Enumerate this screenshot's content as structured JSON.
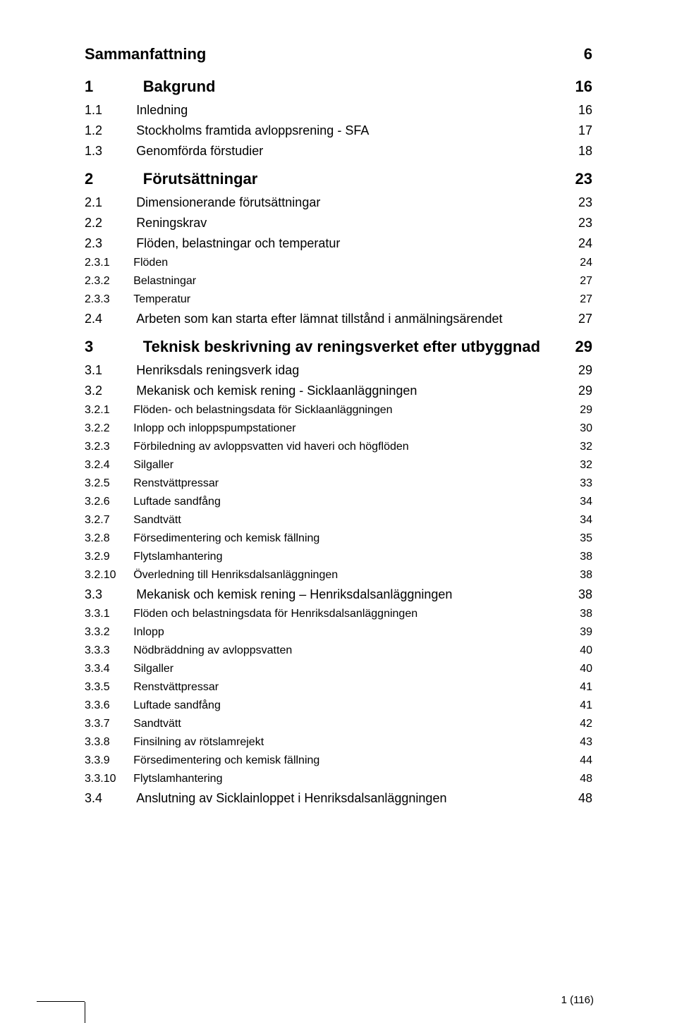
{
  "toc": [
    {
      "level": 0,
      "bold": true,
      "num": "",
      "title": "Sammanfattning",
      "page": "6"
    },
    {
      "level": 1,
      "bold": true,
      "num": "1",
      "title": "Bakgrund",
      "page": "16"
    },
    {
      "level": 1,
      "bold": false,
      "num": "1.1",
      "title": "Inledning",
      "page": "16"
    },
    {
      "level": 1,
      "bold": false,
      "num": "1.2",
      "title": "Stockholms framtida avloppsrening - SFA",
      "page": "17"
    },
    {
      "level": 1,
      "bold": false,
      "num": "1.3",
      "title": "Genomförda förstudier",
      "page": "18"
    },
    {
      "level": 1,
      "bold": true,
      "num": "2",
      "title": "Förutsättningar",
      "page": "23"
    },
    {
      "level": 1,
      "bold": false,
      "num": "2.1",
      "title": "Dimensionerande förutsättningar",
      "page": "23"
    },
    {
      "level": 1,
      "bold": false,
      "num": "2.2",
      "title": "Reningskrav",
      "page": "23"
    },
    {
      "level": 1,
      "bold": false,
      "num": "2.3",
      "title": "Flöden, belastningar och temperatur",
      "page": "24"
    },
    {
      "level": 2,
      "bold": false,
      "num": "2.3.1",
      "title": "Flöden",
      "page": "24"
    },
    {
      "level": 2,
      "bold": false,
      "num": "2.3.2",
      "title": "Belastningar",
      "page": "27"
    },
    {
      "level": 2,
      "bold": false,
      "num": "2.3.3",
      "title": "Temperatur",
      "page": "27"
    },
    {
      "level": 1,
      "bold": false,
      "num": "2.4",
      "title": "Arbeten som kan starta efter lämnat tillstånd i anmälningsärendet",
      "page": "27"
    },
    {
      "level": 1,
      "bold": true,
      "num": "3",
      "title": "Teknisk beskrivning av reningsverket efter utbyggnad",
      "page": "29"
    },
    {
      "level": 1,
      "bold": false,
      "num": "3.1",
      "title": "Henriksdals reningsverk idag",
      "page": "29"
    },
    {
      "level": 1,
      "bold": false,
      "num": "3.2",
      "title": "Mekanisk och kemisk rening - Sicklaanläggningen",
      "page": "29"
    },
    {
      "level": 2,
      "bold": false,
      "num": "3.2.1",
      "title": "Flöden- och belastningsdata för Sicklaanläggningen",
      "page": "29"
    },
    {
      "level": 2,
      "bold": false,
      "num": "3.2.2",
      "title": "Inlopp och inloppspumpstationer",
      "page": "30"
    },
    {
      "level": 2,
      "bold": false,
      "num": "3.2.3",
      "title": "Förbiledning av avloppsvatten vid haveri och högflöden",
      "page": "32"
    },
    {
      "level": 2,
      "bold": false,
      "num": "3.2.4",
      "title": "Silgaller",
      "page": "32"
    },
    {
      "level": 2,
      "bold": false,
      "num": "3.2.5",
      "title": "Renstvättpressar",
      "page": "33"
    },
    {
      "level": 2,
      "bold": false,
      "num": "3.2.6",
      "title": "Luftade sandfång",
      "page": "34"
    },
    {
      "level": 2,
      "bold": false,
      "num": "3.2.7",
      "title": "Sandtvätt",
      "page": "34"
    },
    {
      "level": 2,
      "bold": false,
      "num": "3.2.8",
      "title": "Försedimentering och kemisk fällning",
      "page": "35"
    },
    {
      "level": 2,
      "bold": false,
      "num": "3.2.9",
      "title": "Flytslamhantering",
      "page": "38"
    },
    {
      "level": 2,
      "bold": false,
      "num": "3.2.10",
      "title": "Överledning till Henriksdalsanläggningen",
      "page": "38"
    },
    {
      "level": 1,
      "bold": false,
      "num": "3.3",
      "title": "Mekanisk och kemisk rening – Henriksdalsanläggningen",
      "page": "38"
    },
    {
      "level": 2,
      "bold": false,
      "num": "3.3.1",
      "title": "Flöden och belastningsdata för Henriksdalsanläggningen",
      "page": "38"
    },
    {
      "level": 2,
      "bold": false,
      "num": "3.3.2",
      "title": "Inlopp",
      "page": "39"
    },
    {
      "level": 2,
      "bold": false,
      "num": "3.3.3",
      "title": "Nödbräddning av avloppsvatten",
      "page": "40"
    },
    {
      "level": 2,
      "bold": false,
      "num": "3.3.4",
      "title": "Silgaller",
      "page": "40"
    },
    {
      "level": 2,
      "bold": false,
      "num": "3.3.5",
      "title": "Renstvättpressar",
      "page": "41"
    },
    {
      "level": 2,
      "bold": false,
      "num": "3.3.6",
      "title": "Luftade sandfång",
      "page": "41"
    },
    {
      "level": 2,
      "bold": false,
      "num": "3.3.7",
      "title": "Sandtvätt",
      "page": "42"
    },
    {
      "level": 2,
      "bold": false,
      "num": "3.3.8",
      "title": "Finsilning av rötslamrejekt",
      "page": "43"
    },
    {
      "level": 2,
      "bold": false,
      "num": "3.3.9",
      "title": "Försedimentering och kemisk fällning",
      "page": "44"
    },
    {
      "level": 2,
      "bold": false,
      "num": "3.3.10",
      "title": "Flytslamhantering",
      "page": "48"
    },
    {
      "level": 1,
      "bold": false,
      "num": "3.4",
      "title": "Anslutning av Sicklainloppet i Henriksdalsanläggningen",
      "page": "48"
    }
  ],
  "footer": {
    "text": "1 (116)"
  }
}
